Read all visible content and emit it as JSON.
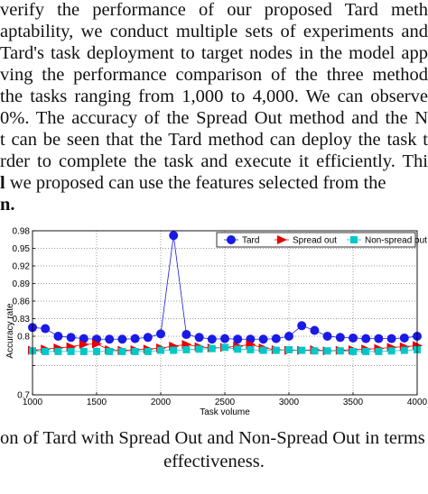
{
  "paragraph": {
    "lines": [
      "verify  the  performance  of  our  proposed  Tard  meth",
      "aptability, we conduct multiple sets of experiments and",
      "Tard's task deployment to target nodes in the model app",
      "ving  the  performance  comparison  of  the  three  method",
      "the tasks ranging from 1,000 to 4,000. We can observe",
      "0%. The accuracy of the Spread Out method and the N",
      "t can be seen that the Tard method can deploy the task t",
      "rder to complete the task and execute it efficiently. Thi"
    ],
    "last_line_bold": "l",
    "last_line_rest": "  we  proposed  can  use  the  features  selected  from  the",
    "final_fragment": "n."
  },
  "caption": {
    "line1": "on of Tard with Spread Out and Non-Spread Out in terms",
    "line2": "effectiveness."
  },
  "chart_data": {
    "type": "line",
    "xlabel": "Task volume",
    "ylabel": "Accuracy rate",
    "xlim": [
      1000,
      4000
    ],
    "ylim": [
      0.7,
      0.98
    ],
    "xticks": [
      1000,
      1500,
      2000,
      2500,
      3000,
      3500,
      4000
    ],
    "yticks": [
      0.7,
      0.75,
      0.8,
      0.83,
      0.86,
      0.89,
      0.92,
      0.95,
      0.98
    ],
    "ytick_labels": [
      "0.7",
      "",
      "0.8",
      "0.83",
      "0.86",
      "0.89",
      "0.92",
      "0.95",
      "0.98"
    ],
    "grid": true,
    "legend_position": "top-right",
    "x": [
      1000,
      1100,
      1200,
      1300,
      1400,
      1500,
      1600,
      1700,
      1800,
      1900,
      2000,
      2100,
      2200,
      2300,
      2400,
      2500,
      2600,
      2700,
      2800,
      2900,
      3000,
      3100,
      3200,
      3300,
      3400,
      3500,
      3600,
      3700,
      3800,
      3900,
      4000
    ],
    "series": [
      {
        "name": "Tard",
        "color": "#1a1ae6",
        "marker": "circle",
        "values": [
          0.815,
          0.813,
          0.8,
          0.798,
          0.796,
          0.795,
          0.795,
          0.795,
          0.796,
          0.798,
          0.804,
          0.972,
          0.803,
          0.798,
          0.795,
          0.796,
          0.795,
          0.795,
          0.795,
          0.796,
          0.8,
          0.818,
          0.81,
          0.8,
          0.798,
          0.797,
          0.796,
          0.796,
          0.796,
          0.797,
          0.8
        ]
      },
      {
        "name": "Spread out",
        "color": "#e60000",
        "marker": "triangle-right",
        "values": [
          0.776,
          0.778,
          0.78,
          0.782,
          0.786,
          0.787,
          0.777,
          0.776,
          0.777,
          0.778,
          0.78,
          0.783,
          0.786,
          0.782,
          0.78,
          0.781,
          0.783,
          0.786,
          0.78,
          0.777,
          0.776,
          0.776,
          0.777,
          0.775,
          0.776,
          0.777,
          0.778,
          0.779,
          0.781,
          0.782,
          0.784
        ]
      },
      {
        "name": "Non-spread out",
        "color": "#00c8c8",
        "marker": "square",
        "values": [
          0.775,
          0.774,
          0.774,
          0.774,
          0.774,
          0.774,
          0.774,
          0.774,
          0.774,
          0.774,
          0.776,
          0.776,
          0.777,
          0.778,
          0.779,
          0.781,
          0.778,
          0.777,
          0.776,
          0.776,
          0.777,
          0.776,
          0.775,
          0.775,
          0.775,
          0.774,
          0.774,
          0.774,
          0.775,
          0.776,
          0.777
        ]
      }
    ]
  }
}
